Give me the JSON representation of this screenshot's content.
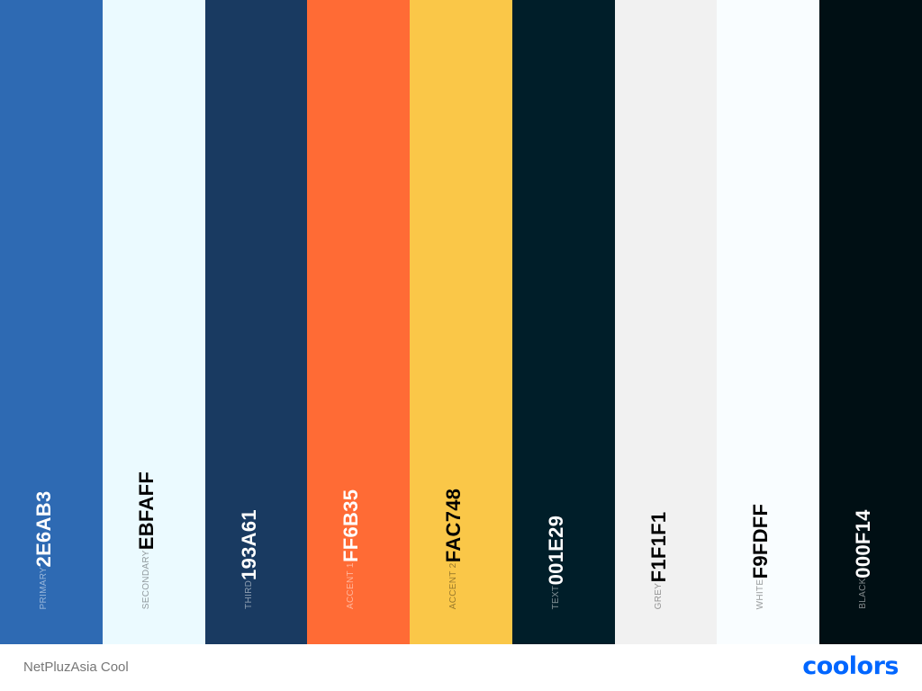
{
  "palette_name": "NetPluzAsia Cool",
  "logo_text": "coolors",
  "logo_color": "#0066FF",
  "swatches": [
    {
      "label": "PRIMARY",
      "hex": "2E6AB3",
      "color": "#2E6AB3",
      "tone": "dark"
    },
    {
      "label": "SECONDARY",
      "hex": "EBFAFF",
      "color": "#EBFAFF",
      "tone": "light"
    },
    {
      "label": "THIRD",
      "hex": "193A61",
      "color": "#193A61",
      "tone": "dark"
    },
    {
      "label": "ACCENT 1",
      "hex": "FF6B35",
      "color": "#FF6B35",
      "tone": "dark"
    },
    {
      "label": "ACCENT 2",
      "hex": "FAC748",
      "color": "#FAC748",
      "tone": "light"
    },
    {
      "label": "TEXT",
      "hex": "001E29",
      "color": "#001E29",
      "tone": "dark"
    },
    {
      "label": "GREY",
      "hex": "F1F1F1",
      "color": "#F1F1F1",
      "tone": "light"
    },
    {
      "label": "WHITE",
      "hex": "F9FDFF",
      "color": "#F9FDFF",
      "tone": "light"
    },
    {
      "label": "BLACK",
      "hex": "000F14",
      "color": "#000F14",
      "tone": "dark"
    }
  ]
}
